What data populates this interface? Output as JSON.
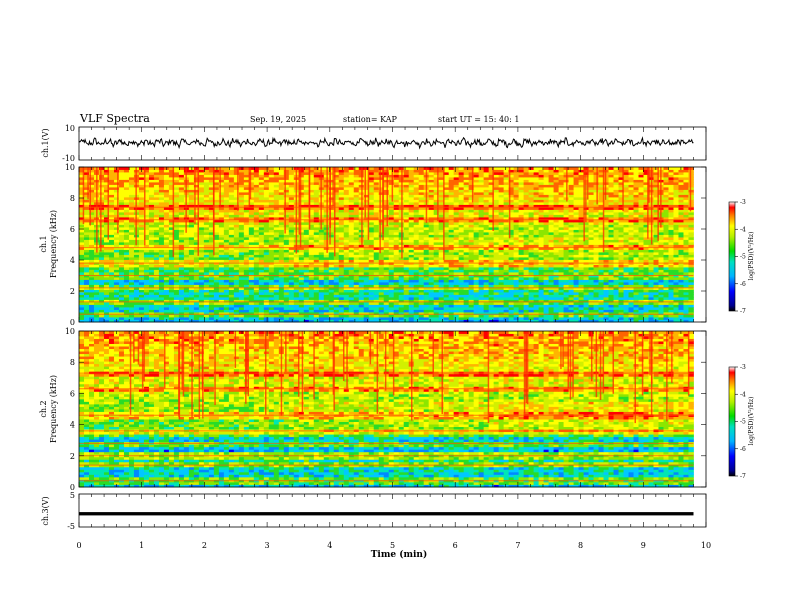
{
  "header": {
    "title": "VLF Spectra",
    "date": "Sep. 19, 2025",
    "station": "station= KAP",
    "start": "start  UT  =   15: 40: 1"
  },
  "chart_data": [
    {
      "type": "line",
      "name": "ch1-waveform",
      "ylabel": "ch.1(V)",
      "ylim": [
        -10,
        10
      ],
      "yticks": [
        "10",
        "-10"
      ],
      "xlim": [
        0,
        10
      ],
      "series": [
        {
          "name": "ch.1",
          "amplitude_approx": 2.5,
          "offset": 0.5
        }
      ]
    },
    {
      "type": "heatmap",
      "name": "ch1-spectrogram",
      "ylabel_line1": "ch.1",
      "ylabel_line2": "Frequency  (kHz)",
      "ylim": [
        0,
        10
      ],
      "yticks": [
        "0",
        "2",
        "4",
        "6",
        "8",
        "10"
      ],
      "xlim": [
        0,
        9.8
      ],
      "bands_khz": [
        0.5,
        1.3,
        2.2,
        3.0,
        3.8,
        4.8,
        6.6,
        7.4
      ],
      "level_change_min": 3.35,
      "colorbar": {
        "label": "log(PSD)(V²/Hz)",
        "ticks": [
          "-3",
          "-4",
          "-5",
          "-6",
          "-7"
        ],
        "range": [
          -7,
          -3
        ]
      }
    },
    {
      "type": "heatmap",
      "name": "ch2-spectrogram",
      "ylabel_line1": "ch.2",
      "ylabel_line2": "Frequency  (kHz)",
      "ylim": [
        0,
        10
      ],
      "yticks": [
        "0",
        "2",
        "4",
        "6",
        "8",
        "10"
      ],
      "xlim": [
        0,
        9.8
      ],
      "bands_khz": [
        0.4,
        1.4,
        2.0,
        2.8,
        3.6,
        4.6,
        6.3,
        7.3
      ],
      "level_change_min": [
        3.35,
        6.5
      ],
      "colorbar": {
        "label": "log(PSD)(V²/Hz)",
        "ticks": [
          "-3",
          "-4",
          "-5",
          "-6",
          "-7"
        ],
        "range": [
          -7,
          -3
        ]
      }
    },
    {
      "type": "line",
      "name": "ch3-waveform",
      "ylabel": "ch.3(V)",
      "ylim": [
        -5,
        5
      ],
      "yticks": [
        "5",
        "-5"
      ],
      "xlim": [
        0,
        10
      ],
      "series": [
        {
          "name": "ch.3",
          "level": -1,
          "band_height": 1
        }
      ]
    }
  ],
  "xaxis": {
    "label": "Time  (min)",
    "ticks": [
      "0",
      "1",
      "2",
      "3",
      "4",
      "5",
      "6",
      "7",
      "8",
      "9",
      "10"
    ]
  },
  "colors": {
    "background": "#ffffff",
    "axes": "#000000"
  }
}
